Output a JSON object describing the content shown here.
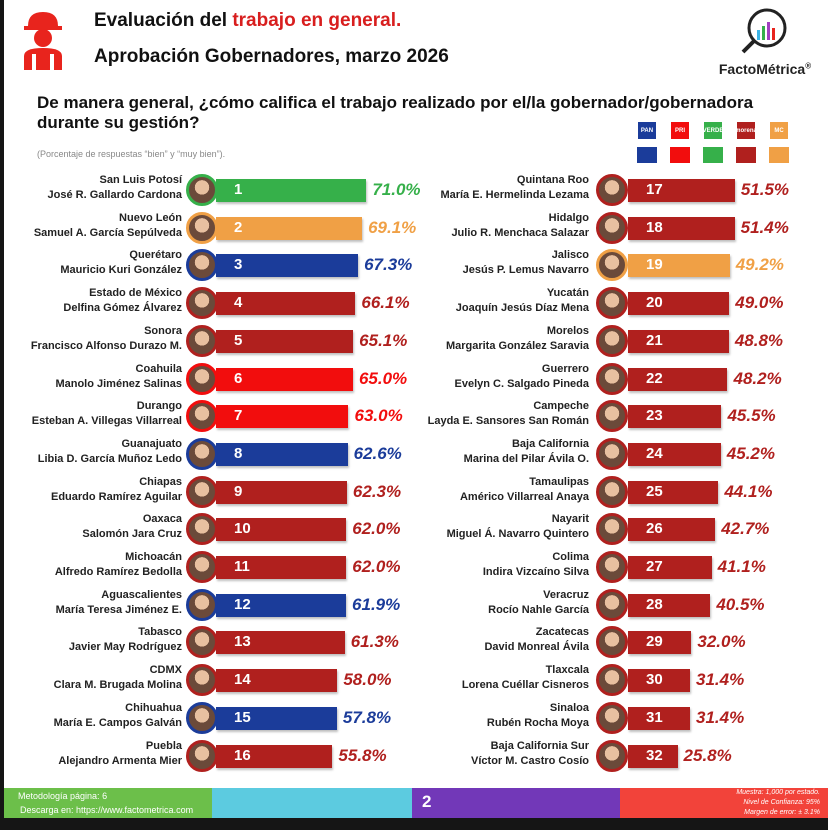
{
  "header": {
    "title_prefix": "Evaluación del ",
    "title_highlight": "trabajo en general.",
    "subtitle": "Aprobación Gobernadores, marzo 2026",
    "brand": "FactoMétrica",
    "brand_mark": "®"
  },
  "question": "De manera general, ¿cómo califica el trabajo realizado por el/la gobernador/gobernadora durante su gestión?",
  "note": "(Porcentaje de respuestas “bien” y “muy bien”).",
  "party_legend": [
    {
      "party": "PAN",
      "icon": "PAN",
      "color": "#1b3c9a"
    },
    {
      "party": "PRI",
      "icon": "PRI",
      "color": "#f20d0d"
    },
    {
      "party": "Verde",
      "icon": "VERDE",
      "color": "#36b04a"
    },
    {
      "party": "Morena",
      "icon": "morena",
      "color": "#b0201e"
    },
    {
      "party": "MC",
      "icon": "MC",
      "color": "#f0a045"
    }
  ],
  "chart_data": {
    "type": "bar",
    "orientation": "horizontal",
    "unit": "%",
    "xlim": [
      0,
      100
    ],
    "items": [
      {
        "rank": "1",
        "state": "San Luis Potosí",
        "governor": "José R. Gallardo Cardona",
        "value": 71.0,
        "label": "71.0%",
        "color": "#36b04a"
      },
      {
        "rank": "2",
        "state": "Nuevo León",
        "governor": "Samuel A. García Sepúlveda",
        "value": 69.1,
        "label": "69.1%",
        "color": "#f0a045"
      },
      {
        "rank": "3",
        "state": "Querétaro",
        "governor": "Mauricio Kuri González",
        "value": 67.3,
        "label": "67.3%",
        "color": "#1b3c9a"
      },
      {
        "rank": "4",
        "state": "Estado de México",
        "governor": "Delfina Gómez Álvarez",
        "value": 66.1,
        "label": "66.1%",
        "color": "#b0201e"
      },
      {
        "rank": "5",
        "state": "Sonora",
        "governor": "Francisco Alfonso Durazo M.",
        "value": 65.1,
        "label": "65.1%",
        "color": "#b0201e"
      },
      {
        "rank": "6",
        "state": "Coahuila",
        "governor": "Manolo Jiménez Salinas",
        "value": 65.0,
        "label": "65.0%",
        "color": "#f20d0d"
      },
      {
        "rank": "7",
        "state": "Durango",
        "governor": "Esteban A. Villegas Villarreal",
        "value": 63.0,
        "label": "63.0%",
        "color": "#f20d0d"
      },
      {
        "rank": "8",
        "state": "Guanajuato",
        "governor": "Libia D. García Muñoz Ledo",
        "value": 62.6,
        "label": "62.6%",
        "color": "#1b3c9a"
      },
      {
        "rank": "9",
        "state": "Chiapas",
        "governor": "Eduardo Ramírez Aguilar",
        "value": 62.3,
        "label": "62.3%",
        "color": "#b0201e"
      },
      {
        "rank": "10",
        "state": "Oaxaca",
        "governor": "Salomón Jara Cruz",
        "value": 62.0,
        "label": "62.0%",
        "color": "#b0201e"
      },
      {
        "rank": "11",
        "state": "Michoacán",
        "governor": "Alfredo Ramírez Bedolla",
        "value": 62.0,
        "label": "62.0%",
        "color": "#b0201e"
      },
      {
        "rank": "12",
        "state": "Aguascalientes",
        "governor": "María Teresa Jiménez E.",
        "value": 61.9,
        "label": "61.9%",
        "color": "#1b3c9a"
      },
      {
        "rank": "13",
        "state": "Tabasco",
        "governor": "Javier May Rodríguez",
        "value": 61.3,
        "label": "61.3%",
        "color": "#b0201e"
      },
      {
        "rank": "14",
        "state": "CDMX",
        "governor": "Clara M. Brugada Molina",
        "value": 58.0,
        "label": "58.0%",
        "color": "#b0201e"
      },
      {
        "rank": "15",
        "state": "Chihuahua",
        "governor": "María E. Campos Galván",
        "value": 57.8,
        "label": "57.8%",
        "color": "#1b3c9a"
      },
      {
        "rank": "16",
        "state": "Puebla",
        "governor": "Alejandro Armenta Mier",
        "value": 55.8,
        "label": "55.8%",
        "color": "#b0201e"
      },
      {
        "rank": "17",
        "state": "Quintana Roo",
        "governor": "María E. Hermelinda Lezama",
        "value": 51.5,
        "label": "51.5%",
        "color": "#b0201e"
      },
      {
        "rank": "18",
        "state": "Hidalgo",
        "governor": "Julio R. Menchaca Salazar",
        "value": 51.4,
        "label": "51.4%",
        "color": "#b0201e"
      },
      {
        "rank": "19",
        "state": "Jalisco",
        "governor": "Jesús P. Lemus Navarro",
        "value": 49.2,
        "label": "49.2%",
        "color": "#f0a045"
      },
      {
        "rank": "20",
        "state": "Yucatán",
        "governor": "Joaquín Jesús Díaz Mena",
        "value": 49.0,
        "label": "49.0%",
        "color": "#b0201e"
      },
      {
        "rank": "21",
        "state": "Morelos",
        "governor": "Margarita González Saravia",
        "value": 48.8,
        "label": "48.8%",
        "color": "#b0201e"
      },
      {
        "rank": "22",
        "state": "Guerrero",
        "governor": "Evelyn C. Salgado Pineda",
        "value": 48.2,
        "label": "48.2%",
        "color": "#b0201e"
      },
      {
        "rank": "23",
        "state": "Campeche",
        "governor": "Layda E. Sansores San Román",
        "value": 45.5,
        "label": "45.5%",
        "color": "#b0201e"
      },
      {
        "rank": "24",
        "state": "Baja California",
        "governor": "Marina del Pilar Ávila O.",
        "value": 45.2,
        "label": "45.2%",
        "color": "#b0201e"
      },
      {
        "rank": "25",
        "state": "Tamaulipas",
        "governor": "Américo Villarreal Anaya",
        "value": 44.1,
        "label": "44.1%",
        "color": "#b0201e"
      },
      {
        "rank": "26",
        "state": "Nayarit",
        "governor": "Miguel Á. Navarro Quintero",
        "value": 42.7,
        "label": "42.7%",
        "color": "#b0201e"
      },
      {
        "rank": "27",
        "state": "Colima",
        "governor": "Indira Vizcaíno Silva",
        "value": 41.1,
        "label": "41.1%",
        "color": "#b0201e"
      },
      {
        "rank": "28",
        "state": "Veracruz",
        "governor": "Rocío Nahle García",
        "value": 40.5,
        "label": "40.5%",
        "color": "#b0201e"
      },
      {
        "rank": "29",
        "state": "Zacatecas",
        "governor": "David Monreal Ávila",
        "value": 32.0,
        "label": "32.0%",
        "color": "#b0201e"
      },
      {
        "rank": "30",
        "state": "Tlaxcala",
        "governor": "Lorena Cuéllar Cisneros",
        "value": 31.4,
        "label": "31.4%",
        "color": "#b0201e"
      },
      {
        "rank": "31",
        "state": "Sinaloa",
        "governor": "Rubén Rocha Moya",
        "value": 31.4,
        "label": "31.4%",
        "color": "#b0201e"
      },
      {
        "rank": "32",
        "state": "Baja California Sur",
        "governor": "Víctor M. Castro Cosío",
        "value": 25.8,
        "label": "25.8%",
        "color": "#b0201e"
      }
    ]
  },
  "footer": {
    "methodology": "Metodología página: 6",
    "download_prefix": "Descarga en: ",
    "download_link": "https://www.factometrica.com",
    "page": "2",
    "sample": "Muestra: 1,000 por estado.",
    "confidence": "Nivel de Confianza: 95%",
    "margin": "Margen de error: ± 3.1%"
  }
}
